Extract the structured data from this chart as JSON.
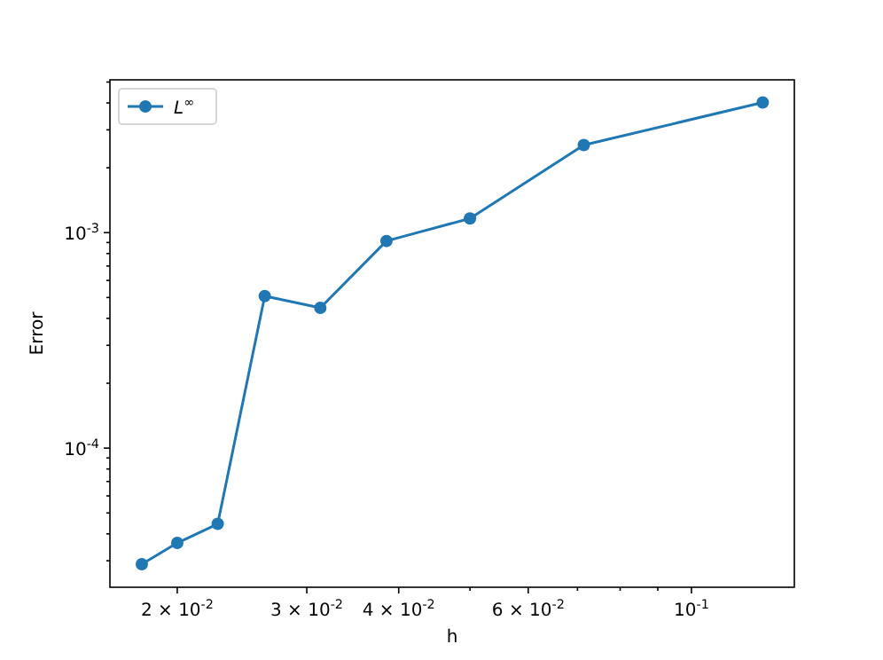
{
  "chart_data": {
    "type": "line",
    "xlabel": "h",
    "ylabel": "Error",
    "log": "xy",
    "marker": "circle",
    "line_style": "solid",
    "legend": "top left",
    "grid": false,
    "xlim": [
      0.0162,
      0.138
    ],
    "ylim": [
      2.26e-05,
      0.00512
    ],
    "xticks": [
      {
        "value": 0.02,
        "label": "2 × 10$^{-2}$"
      },
      {
        "value": 0.03,
        "label": "3 × 10$^{-2}$"
      },
      {
        "value": 0.04,
        "label": "4 × 10$^{-2}$"
      },
      {
        "value": 0.05,
        "label": null
      },
      {
        "value": 0.06,
        "label": "6 × 10$^{-2}$"
      },
      {
        "value": 0.07,
        "label": null
      },
      {
        "value": 0.08,
        "label": null
      },
      {
        "value": 0.09,
        "label": null
      },
      {
        "value": 0.1,
        "label": "10$^{-1}$"
      }
    ],
    "yticks": [
      {
        "value": 3e-05,
        "label": null
      },
      {
        "value": 4e-05,
        "label": null
      },
      {
        "value": 5e-05,
        "label": null
      },
      {
        "value": 6e-05,
        "label": null
      },
      {
        "value": 7e-05,
        "label": null
      },
      {
        "value": 8e-05,
        "label": null
      },
      {
        "value": 9e-05,
        "label": null
      },
      {
        "value": 0.0001,
        "label": "10$^{-4}$"
      },
      {
        "value": 0.0002,
        "label": null
      },
      {
        "value": 0.0003,
        "label": null
      },
      {
        "value": 0.0004,
        "label": null
      },
      {
        "value": 0.0005,
        "label": null
      },
      {
        "value": 0.0006,
        "label": null
      },
      {
        "value": 0.0007,
        "label": null
      },
      {
        "value": 0.0008,
        "label": null
      },
      {
        "value": 0.0009,
        "label": null
      },
      {
        "value": 0.001,
        "label": "10$^{-3}$"
      },
      {
        "value": 0.002,
        "label": null
      },
      {
        "value": 0.003,
        "label": null
      },
      {
        "value": 0.004,
        "label": null
      },
      {
        "value": 0.005,
        "label": null
      }
    ],
    "x": [
      0.0179,
      0.02,
      0.0227,
      0.0263,
      0.0313,
      0.0385,
      0.05,
      0.0714,
      0.125
    ],
    "series": [
      {
        "name": "L$^{∞}$",
        "color": "#1f77b4",
        "values": [
          2.89e-05,
          3.63e-05,
          4.45e-05,
          0.000508,
          0.000448,
          0.000915,
          0.001164,
          0.00255,
          0.00402
        ]
      }
    ]
  }
}
